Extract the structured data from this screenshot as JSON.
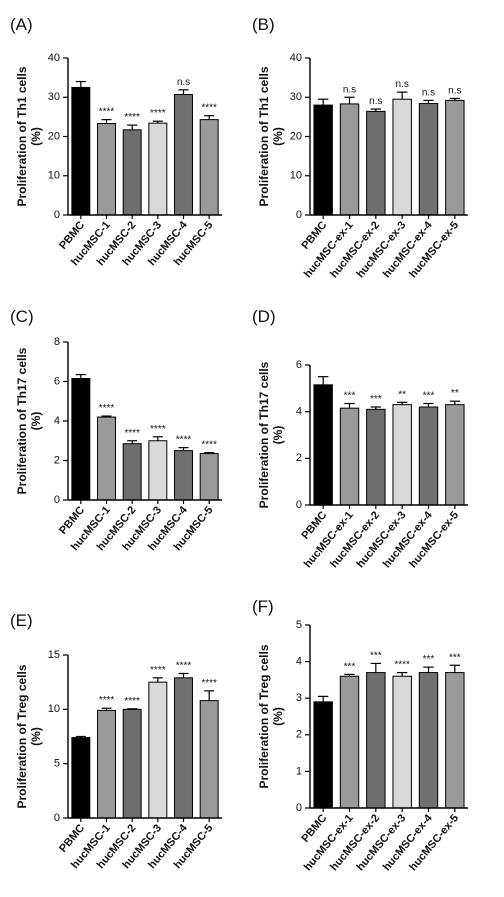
{
  "chart_data": [
    {
      "type": "bar",
      "panel": "(A)",
      "ylabel": "Proliferation of Th1 cells",
      "ylabel_unit": "(%)",
      "categories": [
        "PBMC",
        "hucMSC-1",
        "hucMSC-2",
        "hucMSC-3",
        "hucMSC-4",
        "hucMSC-5"
      ],
      "values": [
        32.5,
        23.3,
        21.7,
        23.4,
        30.7,
        24.3
      ],
      "errors": [
        1.5,
        1.0,
        1.2,
        0.5,
        1.2,
        1.0
      ],
      "annotations": [
        null,
        "****",
        "****",
        "****",
        "n.s",
        "****"
      ],
      "colors": [
        "#000000",
        "#9a9a9a",
        "#6e6e6e",
        "#d9d9d9",
        "#707070",
        "#9a9a9a"
      ],
      "ylim": [
        0,
        40
      ],
      "yticks": [
        0,
        10,
        20,
        30,
        40
      ]
    },
    {
      "type": "bar",
      "panel": "(B)",
      "ylabel": "Proliferation of Th1 cells",
      "ylabel_unit": "(%)",
      "categories": [
        "PBMC",
        "hucMSC-ex-1",
        "hucMSC-ex-2",
        "hucMSC-ex-3",
        "hucMSC-ex-4",
        "hucMSC-ex-5"
      ],
      "values": [
        28.0,
        28.3,
        26.4,
        29.5,
        28.4,
        29.2
      ],
      "errors": [
        1.5,
        1.7,
        0.6,
        1.8,
        0.8,
        0.5
      ],
      "annotations": [
        null,
        "n.s",
        "n.s",
        "n.s",
        "n.s",
        "n.s"
      ],
      "colors": [
        "#000000",
        "#9a9a9a",
        "#6e6e6e",
        "#d9d9d9",
        "#707070",
        "#9a9a9a"
      ],
      "ylim": [
        0,
        40
      ],
      "yticks": [
        0,
        10,
        20,
        30,
        40
      ]
    },
    {
      "type": "bar",
      "panel": "(C)",
      "ylabel": "Proliferation of Th17 cells",
      "ylabel_unit": "(%)",
      "categories": [
        "PBMC",
        "hucMSC-1",
        "hucMSC-2",
        "hucMSC-3",
        "hucMSC-4",
        "hucMSC-5"
      ],
      "values": [
        6.15,
        4.2,
        2.85,
        3.0,
        2.5,
        2.35
      ],
      "errors": [
        0.2,
        0.05,
        0.15,
        0.2,
        0.15,
        0.05
      ],
      "annotations": [
        null,
        "****",
        "****",
        "****",
        "****",
        "****"
      ],
      "colors": [
        "#000000",
        "#9a9a9a",
        "#6e6e6e",
        "#d9d9d9",
        "#707070",
        "#9a9a9a"
      ],
      "ylim": [
        0,
        8
      ],
      "yticks": [
        0,
        2,
        4,
        6,
        8
      ]
    },
    {
      "type": "bar",
      "panel": "(D)",
      "ylabel": "Proliferation of Th17 cells",
      "ylabel_unit": "(%)",
      "categories": [
        "PBMC",
        "hucMSC-ex-1",
        "hucMSC-ex-2",
        "hucMSC-ex-3",
        "hucMSC-ex-4",
        "hucMSC-ex-5"
      ],
      "values": [
        5.15,
        4.15,
        4.1,
        4.3,
        4.2,
        4.3
      ],
      "errors": [
        0.35,
        0.2,
        0.1,
        0.1,
        0.15,
        0.15
      ],
      "annotations": [
        null,
        "***",
        "***",
        "**",
        "***",
        "**"
      ],
      "colors": [
        "#000000",
        "#9a9a9a",
        "#6e6e6e",
        "#d9d9d9",
        "#707070",
        "#9a9a9a"
      ],
      "ylim": [
        0,
        6
      ],
      "yticks": [
        0,
        2,
        4,
        6
      ]
    },
    {
      "type": "bar",
      "panel": "(E)",
      "ylabel": "Proliferation of Treg cells",
      "ylabel_unit": "(%)",
      "categories": [
        "PBMC",
        "hucMSC-1",
        "hucMSC-2",
        "hucMSC-3",
        "hucMSC-4",
        "hucMSC-5"
      ],
      "values": [
        7.4,
        9.9,
        10.0,
        12.5,
        12.9,
        10.8
      ],
      "errors": [
        0.1,
        0.2,
        0.05,
        0.4,
        0.4,
        0.9
      ],
      "annotations": [
        null,
        "****",
        "****",
        "****",
        "****",
        "****"
      ],
      "colors": [
        "#000000",
        "#9a9a9a",
        "#6e6e6e",
        "#d9d9d9",
        "#707070",
        "#9a9a9a"
      ],
      "ylim": [
        0,
        15
      ],
      "yticks": [
        0,
        5,
        10,
        15
      ]
    },
    {
      "type": "bar",
      "panel": "(F)",
      "ylabel": "Proliferation of Treg cells",
      "ylabel_unit": "(%)",
      "categories": [
        "PBMC",
        "hucMSC-ex-1",
        "hucMSC-ex-2",
        "hucMSC-ex-3",
        "hucMSC-ex-4",
        "hucMSC-ex-5"
      ],
      "values": [
        2.9,
        3.6,
        3.7,
        3.6,
        3.7,
        3.7
      ],
      "errors": [
        0.15,
        0.05,
        0.25,
        0.1,
        0.15,
        0.2
      ],
      "annotations": [
        null,
        "***",
        "***",
        "****",
        "***",
        "***"
      ],
      "colors": [
        "#000000",
        "#9a9a9a",
        "#6e6e6e",
        "#d9d9d9",
        "#707070",
        "#9a9a9a"
      ],
      "ylim": [
        0,
        5
      ],
      "yticks": [
        0,
        1,
        2,
        3,
        4,
        5
      ]
    }
  ]
}
